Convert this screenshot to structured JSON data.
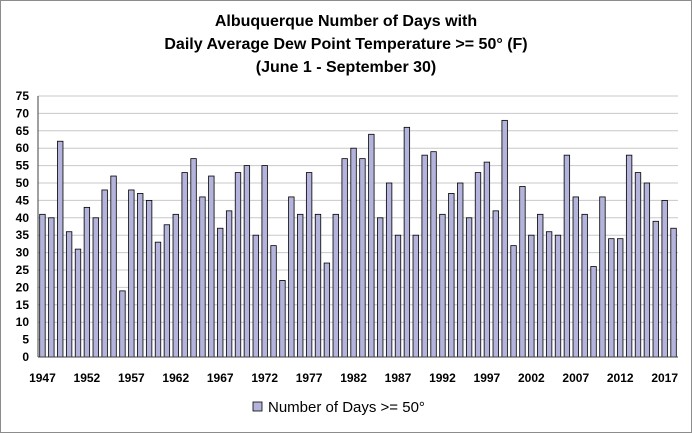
{
  "chart_data": {
    "type": "bar",
    "title": {
      "line1": "Albuquerque Number of Days with",
      "line2": "Daily Average Dew Point Temperature >= 50° (F)",
      "line3": "(June 1 - September 30)"
    },
    "ylim": [
      0,
      75
    ],
    "y_ticks": [
      0,
      5,
      10,
      15,
      20,
      25,
      30,
      35,
      40,
      45,
      50,
      55,
      60,
      65,
      70,
      75
    ],
    "x_tick_labels": [
      "1947",
      "1952",
      "1957",
      "1962",
      "1967",
      "1972",
      "1977",
      "1982",
      "1987",
      "1992",
      "1997",
      "2002",
      "2007",
      "2012",
      "2017"
    ],
    "grid": true,
    "legend_position": "bottom",
    "series": [
      {
        "name": "Number of Days >= 50°",
        "color": "#b3b3dc",
        "categories": [
          1947,
          1948,
          1949,
          1950,
          1951,
          1952,
          1953,
          1954,
          1955,
          1956,
          1957,
          1958,
          1959,
          1960,
          1961,
          1962,
          1963,
          1964,
          1965,
          1966,
          1967,
          1968,
          1969,
          1970,
          1971,
          1972,
          1973,
          1974,
          1975,
          1976,
          1977,
          1978,
          1979,
          1980,
          1981,
          1982,
          1983,
          1984,
          1985,
          1986,
          1987,
          1988,
          1989,
          1990,
          1991,
          1992,
          1993,
          1994,
          1995,
          1996,
          1997,
          1998,
          1999,
          2000,
          2001,
          2002,
          2003,
          2004,
          2005,
          2006,
          2007,
          2008,
          2009,
          2010,
          2011,
          2012,
          2013,
          2014,
          2015,
          2016,
          2017,
          2018
        ],
        "values": [
          41,
          40,
          62,
          36,
          31,
          43,
          40,
          48,
          52,
          19,
          48,
          47,
          45,
          33,
          38,
          41,
          53,
          57,
          46,
          52,
          37,
          42,
          53,
          55,
          35,
          55,
          32,
          22,
          46,
          41,
          53,
          41,
          27,
          41,
          57,
          60,
          57,
          64,
          40,
          50,
          35,
          66,
          35,
          58,
          59,
          41,
          47,
          50,
          40,
          53,
          56,
          42,
          68,
          32,
          49,
          35,
          41,
          36,
          35,
          58,
          46,
          41,
          26,
          46,
          34,
          34,
          58,
          53,
          50,
          39,
          45,
          37
        ]
      }
    ]
  }
}
